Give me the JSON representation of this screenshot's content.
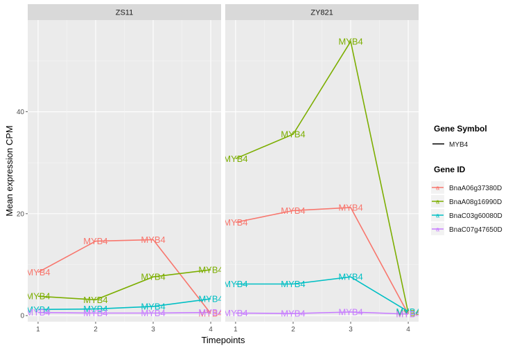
{
  "chart_data": {
    "type": "line",
    "facets": [
      "ZS11",
      "ZY821"
    ],
    "x": [
      1,
      2,
      3,
      4
    ],
    "xlabel": "Timepoints",
    "ylabel": "Mean expression CPM",
    "xticks": [
      "1",
      "2",
      "3",
      "4"
    ],
    "yticks": [
      "0",
      "20",
      "40"
    ],
    "ylim": [
      -1.2,
      58
    ],
    "grid": true,
    "point_label": "MYB4",
    "series": [
      {
        "name": "BnaA06g37380D",
        "color": "#F8766D",
        "ZS11": [
          8.5,
          14.6,
          14.9,
          0.4
        ],
        "ZY821": [
          18.3,
          20.6,
          21.2,
          0.3
        ]
      },
      {
        "name": "BnaA08g16990D",
        "color": "#7CAE00",
        "ZS11": [
          3.8,
          3.1,
          7.6,
          9.0
        ],
        "ZY821": [
          30.8,
          35.6,
          53.8,
          0.5
        ]
      },
      {
        "name": "BnaC03g60080D",
        "color": "#00BFC4",
        "ZS11": [
          1.2,
          1.3,
          1.8,
          3.3
        ],
        "ZY821": [
          6.2,
          6.2,
          7.6,
          0.8
        ]
      },
      {
        "name": "BnaC07g47650D",
        "color": "#C77CFF",
        "ZS11": [
          0.6,
          0.5,
          0.5,
          0.6
        ],
        "ZY821": [
          0.5,
          0.4,
          0.7,
          0.3
        ]
      }
    ],
    "legend": {
      "position": "right",
      "symbol_title": "Gene Symbol",
      "symbol_label": "MYB4",
      "id_title": "Gene ID"
    }
  }
}
